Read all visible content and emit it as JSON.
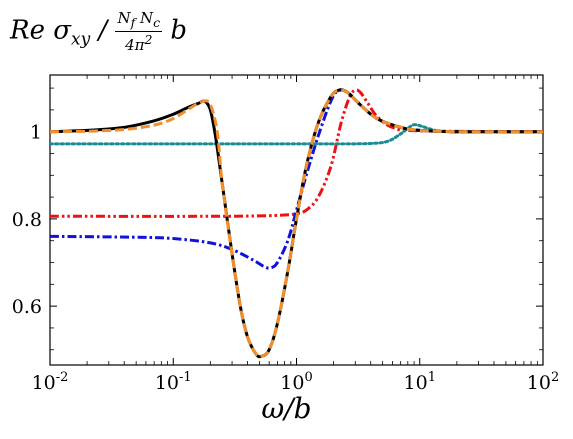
{
  "chart_data": {
    "type": "line",
    "title": "Re σxy / (Nf Nc / 4π²) b",
    "xlabel": "ω/b",
    "ylabel": "",
    "xscale": "log",
    "xlim": [
      0.01,
      100
    ],
    "ylim": [
      0.465,
      1.13
    ],
    "x_ticks": [
      {
        "value": 0.01,
        "label": "10^-2"
      },
      {
        "value": 0.1,
        "label": "10^-1"
      },
      {
        "value": 1,
        "label": "10^0"
      },
      {
        "value": 10,
        "label": "10^1"
      },
      {
        "value": 100,
        "label": "10^2"
      }
    ],
    "y_ticks": [
      {
        "value": 0.6,
        "label": "0.6"
      },
      {
        "value": 0.8,
        "label": "0.8"
      },
      {
        "value": 1.0,
        "label": "1"
      }
    ],
    "grid": false,
    "series": [
      {
        "style": "solid",
        "color": "#000000",
        "points": [
          [
            0.01,
            1.0
          ],
          [
            0.02,
            1.003
          ],
          [
            0.04,
            1.01
          ],
          [
            0.07,
            1.025
          ],
          [
            0.1,
            1.04
          ],
          [
            0.13,
            1.055
          ],
          [
            0.16,
            1.065
          ],
          [
            0.18,
            1.07
          ],
          [
            0.2,
            1.05
          ],
          [
            0.22,
            0.99
          ],
          [
            0.25,
            0.88
          ],
          [
            0.3,
            0.72
          ],
          [
            0.35,
            0.6
          ],
          [
            0.4,
            0.53
          ],
          [
            0.47,
            0.49
          ],
          [
            0.52,
            0.485
          ],
          [
            0.6,
            0.5
          ],
          [
            0.7,
            0.56
          ],
          [
            0.85,
            0.68
          ],
          [
            1.0,
            0.8
          ],
          [
            1.2,
            0.92
          ],
          [
            1.5,
            1.02
          ],
          [
            1.9,
            1.08
          ],
          [
            2.2,
            1.095
          ],
          [
            2.6,
            1.09
          ],
          [
            3.2,
            1.065
          ],
          [
            4.5,
            1.03
          ],
          [
            7,
            1.01
          ],
          [
            10,
            1.003
          ],
          [
            20,
            1.0
          ],
          [
            100,
            1.0
          ]
        ]
      },
      {
        "style": "dashed",
        "color": "#f28e2b",
        "points": [
          [
            0.01,
            1.0
          ],
          [
            0.02,
            1.001
          ],
          [
            0.04,
            1.005
          ],
          [
            0.07,
            1.015
          ],
          [
            0.1,
            1.03
          ],
          [
            0.13,
            1.05
          ],
          [
            0.16,
            1.065
          ],
          [
            0.19,
            1.07
          ],
          [
            0.21,
            1.045
          ],
          [
            0.23,
            0.99
          ],
          [
            0.25,
            0.88
          ],
          [
            0.3,
            0.72
          ],
          [
            0.35,
            0.6
          ],
          [
            0.4,
            0.53
          ],
          [
            0.47,
            0.49
          ],
          [
            0.52,
            0.485
          ],
          [
            0.6,
            0.5
          ],
          [
            0.7,
            0.56
          ],
          [
            0.85,
            0.68
          ],
          [
            1.0,
            0.8
          ],
          [
            1.2,
            0.92
          ],
          [
            1.5,
            1.02
          ],
          [
            1.9,
            1.08
          ],
          [
            2.2,
            1.095
          ],
          [
            2.6,
            1.09
          ],
          [
            3.2,
            1.065
          ],
          [
            4.5,
            1.03
          ],
          [
            7,
            1.01
          ],
          [
            10,
            1.003
          ],
          [
            20,
            1.0
          ],
          [
            100,
            1.0
          ]
        ]
      },
      {
        "style": "dotted",
        "color": "#1b8a93",
        "points": [
          [
            0.01,
            0.972
          ],
          [
            0.5,
            0.972
          ],
          [
            2,
            0.972
          ],
          [
            4,
            0.973
          ],
          [
            5.5,
            0.978
          ],
          [
            7,
            0.995
          ],
          [
            8.5,
            1.013
          ],
          [
            9.3,
            1.016
          ],
          [
            10.5,
            1.012
          ],
          [
            13,
            1.004
          ],
          [
            17,
            1.0
          ],
          [
            100,
            1.0
          ]
        ]
      },
      {
        "style": "dashdotdot",
        "color": "#ee1111",
        "points": [
          [
            0.01,
            0.806
          ],
          [
            0.2,
            0.806
          ],
          [
            0.5,
            0.807
          ],
          [
            0.8,
            0.809
          ],
          [
            1.0,
            0.812
          ],
          [
            1.2,
            0.82
          ],
          [
            1.5,
            0.85
          ],
          [
            1.9,
            0.92
          ],
          [
            2.3,
            1.02
          ],
          [
            2.7,
            1.08
          ],
          [
            3.0,
            1.095
          ],
          [
            3.3,
            1.09
          ],
          [
            3.8,
            1.065
          ],
          [
            4.5,
            1.035
          ],
          [
            6,
            1.01
          ],
          [
            10,
            1.002
          ],
          [
            100,
            1.0
          ]
        ]
      },
      {
        "style": "dashdot",
        "color": "#1111dd",
        "points": [
          [
            0.01,
            0.76
          ],
          [
            0.05,
            0.758
          ],
          [
            0.1,
            0.755
          ],
          [
            0.2,
            0.745
          ],
          [
            0.3,
            0.73
          ],
          [
            0.45,
            0.705
          ],
          [
            0.55,
            0.69
          ],
          [
            0.62,
            0.688
          ],
          [
            0.7,
            0.7
          ],
          [
            0.85,
            0.75
          ],
          [
            1.0,
            0.82
          ],
          [
            1.2,
            0.9
          ],
          [
            1.5,
            0.99
          ],
          [
            1.9,
            1.07
          ],
          [
            2.2,
            1.095
          ],
          [
            2.6,
            1.09
          ],
          [
            3.2,
            1.065
          ],
          [
            4.5,
            1.03
          ],
          [
            7,
            1.01
          ],
          [
            10,
            1.003
          ],
          [
            20,
            1.0
          ],
          [
            100,
            1.0
          ]
        ]
      }
    ]
  }
}
